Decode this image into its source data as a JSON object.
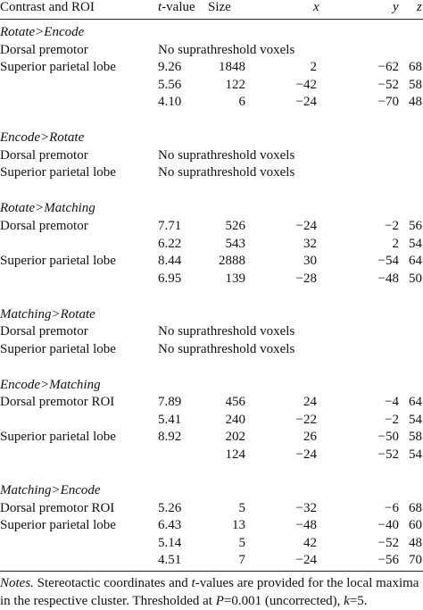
{
  "header": {
    "roi": "Contrast and ROI",
    "t_italic": "t",
    "t_rest": "-value",
    "size": "Size",
    "x": "x",
    "y": "y",
    "z": "z"
  },
  "rows": [
    {
      "section": "Rotate>Encode"
    },
    {
      "roi": "Dorsal premotor",
      "note": "No suprathreshold voxels"
    },
    {
      "roi": "Superior parietal lobe",
      "t": "9.26",
      "size": "1848",
      "x": "2",
      "y": "−62",
      "z": "68"
    },
    {
      "t": "5.56",
      "size": "122",
      "x": "−42",
      "y": "−52",
      "z": "58"
    },
    {
      "t": "4.10",
      "size": "6",
      "x": "−24",
      "y": "−70",
      "z": "48"
    },
    {
      "section": "Encode>Rotate"
    },
    {
      "roi": "Dorsal premotor",
      "note": "No suprathreshold voxels"
    },
    {
      "roi": "Superior parietal lobe",
      "note": "No suprathreshold voxels"
    },
    {
      "section": "Rotate>Matching"
    },
    {
      "roi": "Dorsal premotor",
      "t": "7.71",
      "size": "526",
      "x": "−24",
      "y": "−2",
      "z": "56"
    },
    {
      "t": "6.22",
      "size": "543",
      "x": "32",
      "y": "2",
      "z": "54"
    },
    {
      "roi": "Superior parietal lobe",
      "t": "8.44",
      "size": "2888",
      "x": "30",
      "y": "−54",
      "z": "64"
    },
    {
      "t": "6.95",
      "size": "139",
      "x": "−28",
      "y": "−48",
      "z": "50"
    },
    {
      "section": "Matching>Rotate"
    },
    {
      "roi": "Dorsal premotor",
      "note": "No suprathreshold voxels"
    },
    {
      "roi": "Superior parietal lobe",
      "note": "No suprathreshold voxels"
    },
    {
      "section": "Encode>Matching"
    },
    {
      "roi": "Dorsal premotor ROI",
      "t": "7.89",
      "size": "456",
      "x": "24",
      "y": "−4",
      "z": "64"
    },
    {
      "t": "5.41",
      "size": "240",
      "x": "−22",
      "y": "−2",
      "z": "54"
    },
    {
      "roi": "Superior parietal lobe",
      "t": "8.92",
      "size": "202",
      "x": "26",
      "y": "−50",
      "z": "58"
    },
    {
      "size": "124",
      "x": "−24",
      "y": "−52",
      "z": "54"
    },
    {
      "section": "Matching>Encode"
    },
    {
      "roi": "Dorsal premotor ROI",
      "t": "5.26",
      "size": "5",
      "x": "−32",
      "y": "−6",
      "z": "68"
    },
    {
      "roi": "Superior parietal lobe",
      "t": "6.43",
      "size": "13",
      "x": "−48",
      "y": "−40",
      "z": "60"
    },
    {
      "t": "5.14",
      "size": "5",
      "x": "42",
      "y": "−52",
      "z": "48"
    },
    {
      "t": "4.51",
      "size": "7",
      "x": "−24",
      "y": "−56",
      "z": "70"
    }
  ],
  "notes": {
    "line1": [
      "Notes.",
      " Stereotactic coordinates and ",
      "t",
      "-values are provided for the local maxima"
    ],
    "line2": [
      "in the respective cluster. Thresholded at ",
      "P",
      "=0.001 (uncorrected), ",
      "k",
      "=5."
    ]
  }
}
